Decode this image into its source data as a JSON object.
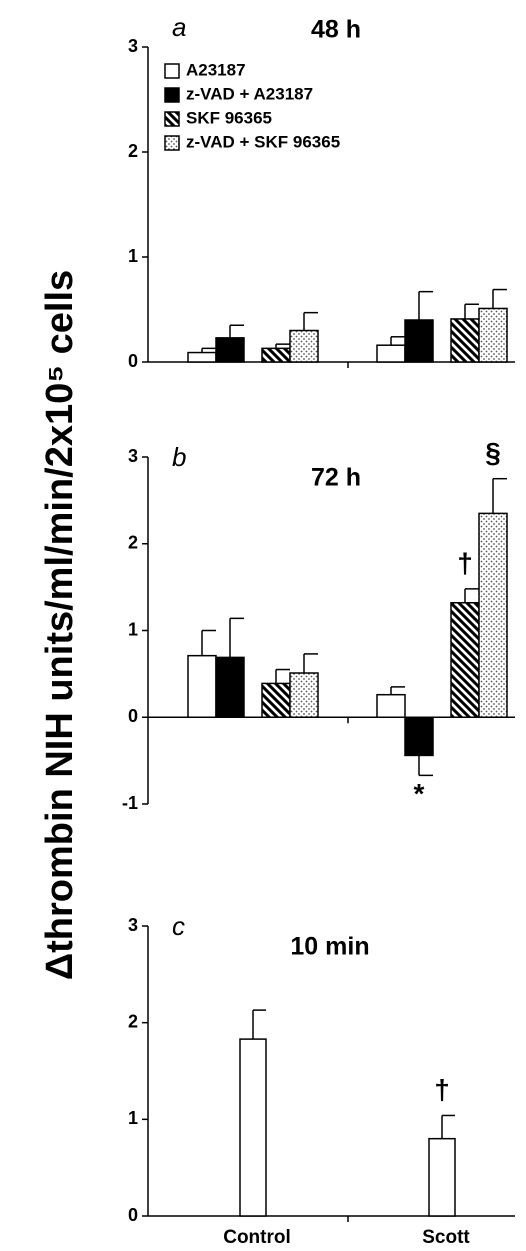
{
  "chart_data": [
    {
      "type": "bar",
      "panel": "a",
      "title": "48 h",
      "ylabel": "Δthrombin NIH units/ml/min/2x10⁵ cells",
      "categories": [
        null,
        null
      ],
      "ylim": [
        0,
        3
      ],
      "yticks": [
        0,
        1,
        2,
        3
      ],
      "series": [
        {
          "name": "A23187",
          "color": "#ffffff",
          "values": [
            0.09,
            0.16
          ],
          "errors": [
            0.04,
            0.08
          ]
        },
        {
          "name": "z-VAD + A23187",
          "color": "#000000",
          "values": [
            0.23,
            0.4
          ],
          "errors": [
            0.12,
            0.27
          ]
        },
        {
          "name": "SKF 96365",
          "color": "#ffffff",
          "pattern": "hatch",
          "values": [
            0.13,
            0.41
          ],
          "errors": [
            0.04,
            0.14
          ]
        },
        {
          "name": "z-VAD + SKF 96365",
          "color": "#ffffff",
          "pattern": "dots",
          "values": [
            0.3,
            0.51
          ],
          "errors": [
            0.17,
            0.18
          ]
        }
      ]
    },
    {
      "type": "bar",
      "panel": "b",
      "title": "72 h",
      "categories": [
        null,
        null
      ],
      "ylim": [
        -1,
        3
      ],
      "yticks": [
        -1,
        0,
        1,
        2,
        3
      ],
      "series": [
        {
          "color": "#ffffff",
          "values": [
            0.71,
            0.26
          ],
          "errors": [
            0.29,
            0.09
          ],
          "annotations": [
            null,
            null
          ]
        },
        {
          "color": "#000000",
          "values": [
            0.69,
            -0.44
          ],
          "errors": [
            0.45,
            0.23
          ],
          "annotations": [
            null,
            "*"
          ]
        },
        {
          "color": "#ffffff",
          "pattern": "hatch",
          "values": [
            0.39,
            1.32
          ],
          "errors": [
            0.16,
            0.16
          ],
          "annotations": [
            null,
            "†"
          ]
        },
        {
          "color": "#ffffff",
          "pattern": "dots",
          "values": [
            0.51,
            2.35
          ],
          "errors": [
            0.22,
            0.4
          ],
          "annotations": [
            null,
            "§"
          ]
        }
      ]
    },
    {
      "type": "bar",
      "panel": "c",
      "title": "10 min",
      "categories": [
        "Control",
        "Scott"
      ],
      "ylim": [
        0,
        3
      ],
      "yticks": [
        0,
        1,
        2,
        3
      ],
      "series": [
        {
          "color": "#ffffff",
          "values": [
            1.83,
            0.8
          ],
          "errors": [
            0.3,
            0.24
          ],
          "annotations": [
            null,
            "†"
          ]
        }
      ]
    }
  ]
}
